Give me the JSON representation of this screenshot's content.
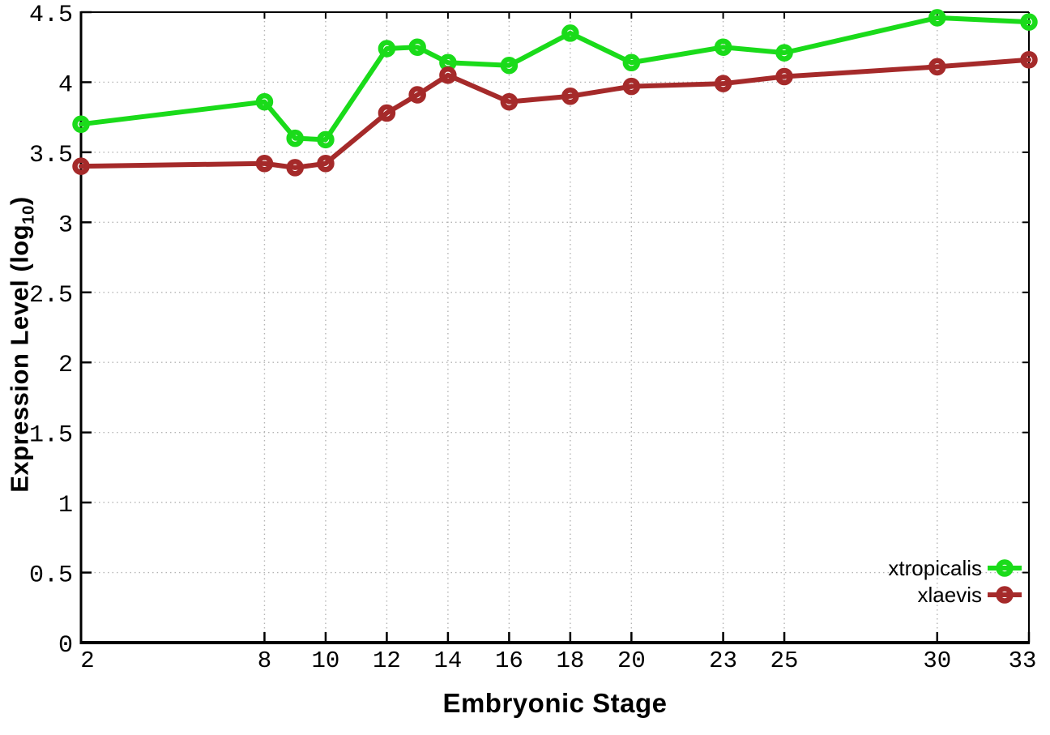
{
  "axes": {
    "x_title": "Embryonic Stage",
    "y_title_prefix": "Expression Level (log",
    "y_title_subscript": "10",
    "y_title_suffix": ")"
  },
  "chart_data": {
    "type": "line",
    "title": "",
    "xlabel": "Embryonic Stage",
    "ylabel": "Expression Level (log10)",
    "x": [
      2,
      8,
      9,
      10,
      12,
      13,
      14,
      16,
      18,
      20,
      23,
      25,
      30,
      33
    ],
    "x_tick_labels": [
      2,
      8,
      10,
      12,
      14,
      16,
      18,
      20,
      23,
      25,
      30,
      33
    ],
    "y_ticks": [
      0,
      0.5,
      1,
      1.5,
      2,
      2.5,
      3,
      3.5,
      4,
      4.5
    ],
    "xlim": [
      2,
      33
    ],
    "ylim": [
      0,
      4.5
    ],
    "grid": true,
    "grid_style": "dotted",
    "legend_position": "bottom-right",
    "marker": "open-circle",
    "axis_color": "#000000",
    "grid_color": "#b4b4b4",
    "series": [
      {
        "name": "xtropicalis",
        "color": "#1adb1a",
        "values": [
          3.7,
          3.86,
          3.6,
          3.59,
          4.24,
          4.25,
          4.14,
          4.12,
          4.35,
          4.14,
          4.25,
          4.21,
          4.46,
          4.43
        ]
      },
      {
        "name": "xlaevis",
        "color": "#a52a2a",
        "values": [
          3.4,
          3.42,
          3.39,
          3.42,
          3.78,
          3.91,
          4.05,
          3.86,
          3.9,
          3.97,
          3.99,
          4.04,
          4.11,
          4.16
        ]
      }
    ]
  }
}
